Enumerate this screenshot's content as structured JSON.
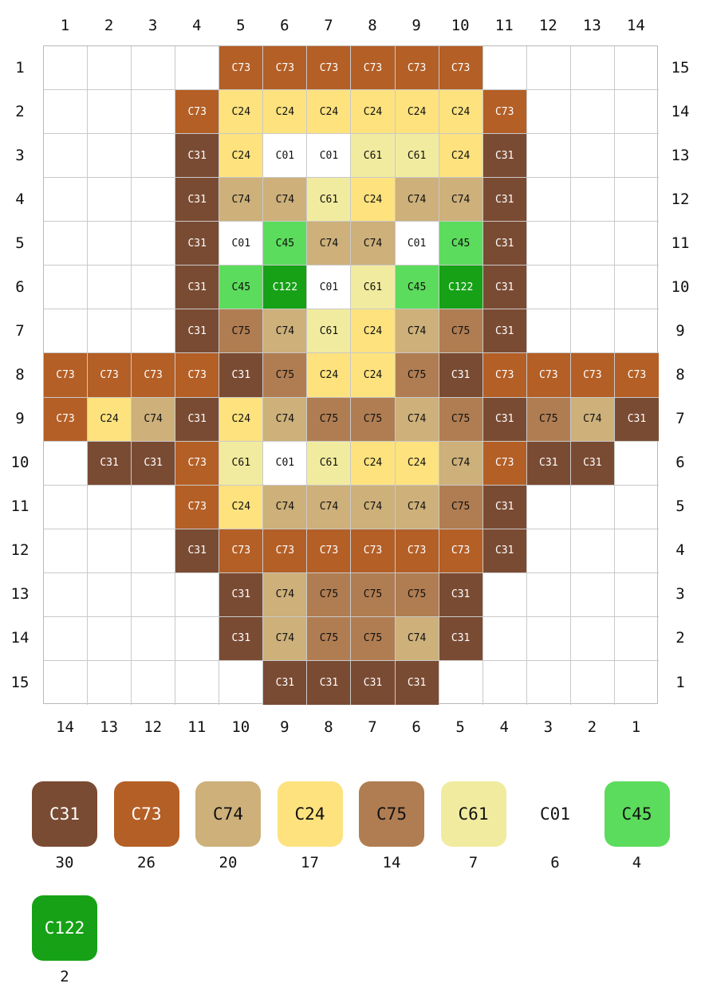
{
  "grid": {
    "cols": 14,
    "rows": 15,
    "rows_data": [
      [
        null,
        null,
        null,
        null,
        "C73",
        "C73",
        "C73",
        "C73",
        "C73",
        "C73",
        null,
        null,
        null,
        null
      ],
      [
        null,
        null,
        null,
        "C73",
        "C24",
        "C24",
        "C24",
        "C24",
        "C24",
        "C24",
        "C73",
        null,
        null,
        null
      ],
      [
        null,
        null,
        null,
        "C31",
        "C24",
        "C01",
        "C01",
        "C61",
        "C61",
        "C24",
        "C31",
        null,
        null,
        null
      ],
      [
        null,
        null,
        null,
        "C31",
        "C74",
        "C74",
        "C61",
        "C24",
        "C74",
        "C74",
        "C31",
        null,
        null,
        null
      ],
      [
        null,
        null,
        null,
        "C31",
        "C01",
        "C45",
        "C74",
        "C74",
        "C01",
        "C45",
        "C31",
        null,
        null,
        null
      ],
      [
        null,
        null,
        null,
        "C31",
        "C45",
        "C122",
        "C01",
        "C61",
        "C45",
        "C122",
        "C31",
        null,
        null,
        null
      ],
      [
        null,
        null,
        null,
        "C31",
        "C75",
        "C74",
        "C61",
        "C24",
        "C74",
        "C75",
        "C31",
        null,
        null,
        null
      ],
      [
        "C73",
        "C73",
        "C73",
        "C73",
        "C31",
        "C75",
        "C24",
        "C24",
        "C75",
        "C31",
        "C73",
        "C73",
        "C73",
        "C73"
      ],
      [
        "C73",
        "C24",
        "C74",
        "C31",
        "C24",
        "C74",
        "C75",
        "C75",
        "C74",
        "C75",
        "C31",
        "C75",
        "C74",
        "C31"
      ],
      [
        null,
        "C31",
        "C31",
        "C73",
        "C61",
        "C01",
        "C61",
        "C24",
        "C24",
        "C74",
        "C73",
        "C31",
        "C31",
        null
      ],
      [
        null,
        null,
        null,
        "C73",
        "C24",
        "C74",
        "C74",
        "C74",
        "C74",
        "C75",
        "C31",
        null,
        null,
        null
      ],
      [
        null,
        null,
        null,
        "C31",
        "C73",
        "C73",
        "C73",
        "C73",
        "C73",
        "C73",
        "C31",
        null,
        null,
        null
      ],
      [
        null,
        null,
        null,
        null,
        "C31",
        "C74",
        "C75",
        "C75",
        "C75",
        "C31",
        null,
        null,
        null,
        null
      ],
      [
        null,
        null,
        null,
        null,
        "C31",
        "C74",
        "C75",
        "C75",
        "C74",
        "C31",
        null,
        null,
        null,
        null
      ],
      [
        null,
        null,
        null,
        null,
        null,
        "C31",
        "C31",
        "C31",
        "C31",
        null,
        null,
        null,
        null,
        null
      ]
    ]
  },
  "axes": {
    "top": [
      "1",
      "2",
      "3",
      "4",
      "5",
      "6",
      "7",
      "8",
      "9",
      "10",
      "11",
      "12",
      "13",
      "14"
    ],
    "bottom": [
      "14",
      "13",
      "12",
      "11",
      "10",
      "9",
      "8",
      "7",
      "6",
      "5",
      "4",
      "3",
      "2",
      "1"
    ],
    "left": [
      "1",
      "2",
      "3",
      "4",
      "5",
      "6",
      "7",
      "8",
      "9",
      "10",
      "11",
      "12",
      "13",
      "14",
      "15"
    ],
    "right": [
      "15",
      "14",
      "13",
      "12",
      "11",
      "10",
      "9",
      "8",
      "7",
      "6",
      "5",
      "4",
      "3",
      "2",
      "1"
    ]
  },
  "colors": {
    "C31": {
      "bg": "#7a4b33",
      "fg": "#ffffff"
    },
    "C73": {
      "bg": "#b45f26",
      "fg": "#ffffff"
    },
    "C74": {
      "bg": "#cdb07a",
      "fg": "#111111"
    },
    "C24": {
      "bg": "#fde27e",
      "fg": "#111111"
    },
    "C75": {
      "bg": "#b07d52",
      "fg": "#111111"
    },
    "C61": {
      "bg": "#f1eb9f",
      "fg": "#111111"
    },
    "C01": {
      "bg": "#ffffff",
      "fg": "#111111"
    },
    "C45": {
      "bg": "#5cdc5c",
      "fg": "#111111"
    },
    "C122": {
      "bg": "#16a116",
      "fg": "#ffffff"
    }
  },
  "legend": [
    {
      "code": "C31",
      "count": "30"
    },
    {
      "code": "C73",
      "count": "26"
    },
    {
      "code": "C74",
      "count": "20"
    },
    {
      "code": "C24",
      "count": "17"
    },
    {
      "code": "C75",
      "count": "14"
    },
    {
      "code": "C61",
      "count": "7"
    },
    {
      "code": "C01",
      "count": "6"
    },
    {
      "code": "C45",
      "count": "4"
    },
    {
      "code": "C122",
      "count": "2"
    }
  ]
}
